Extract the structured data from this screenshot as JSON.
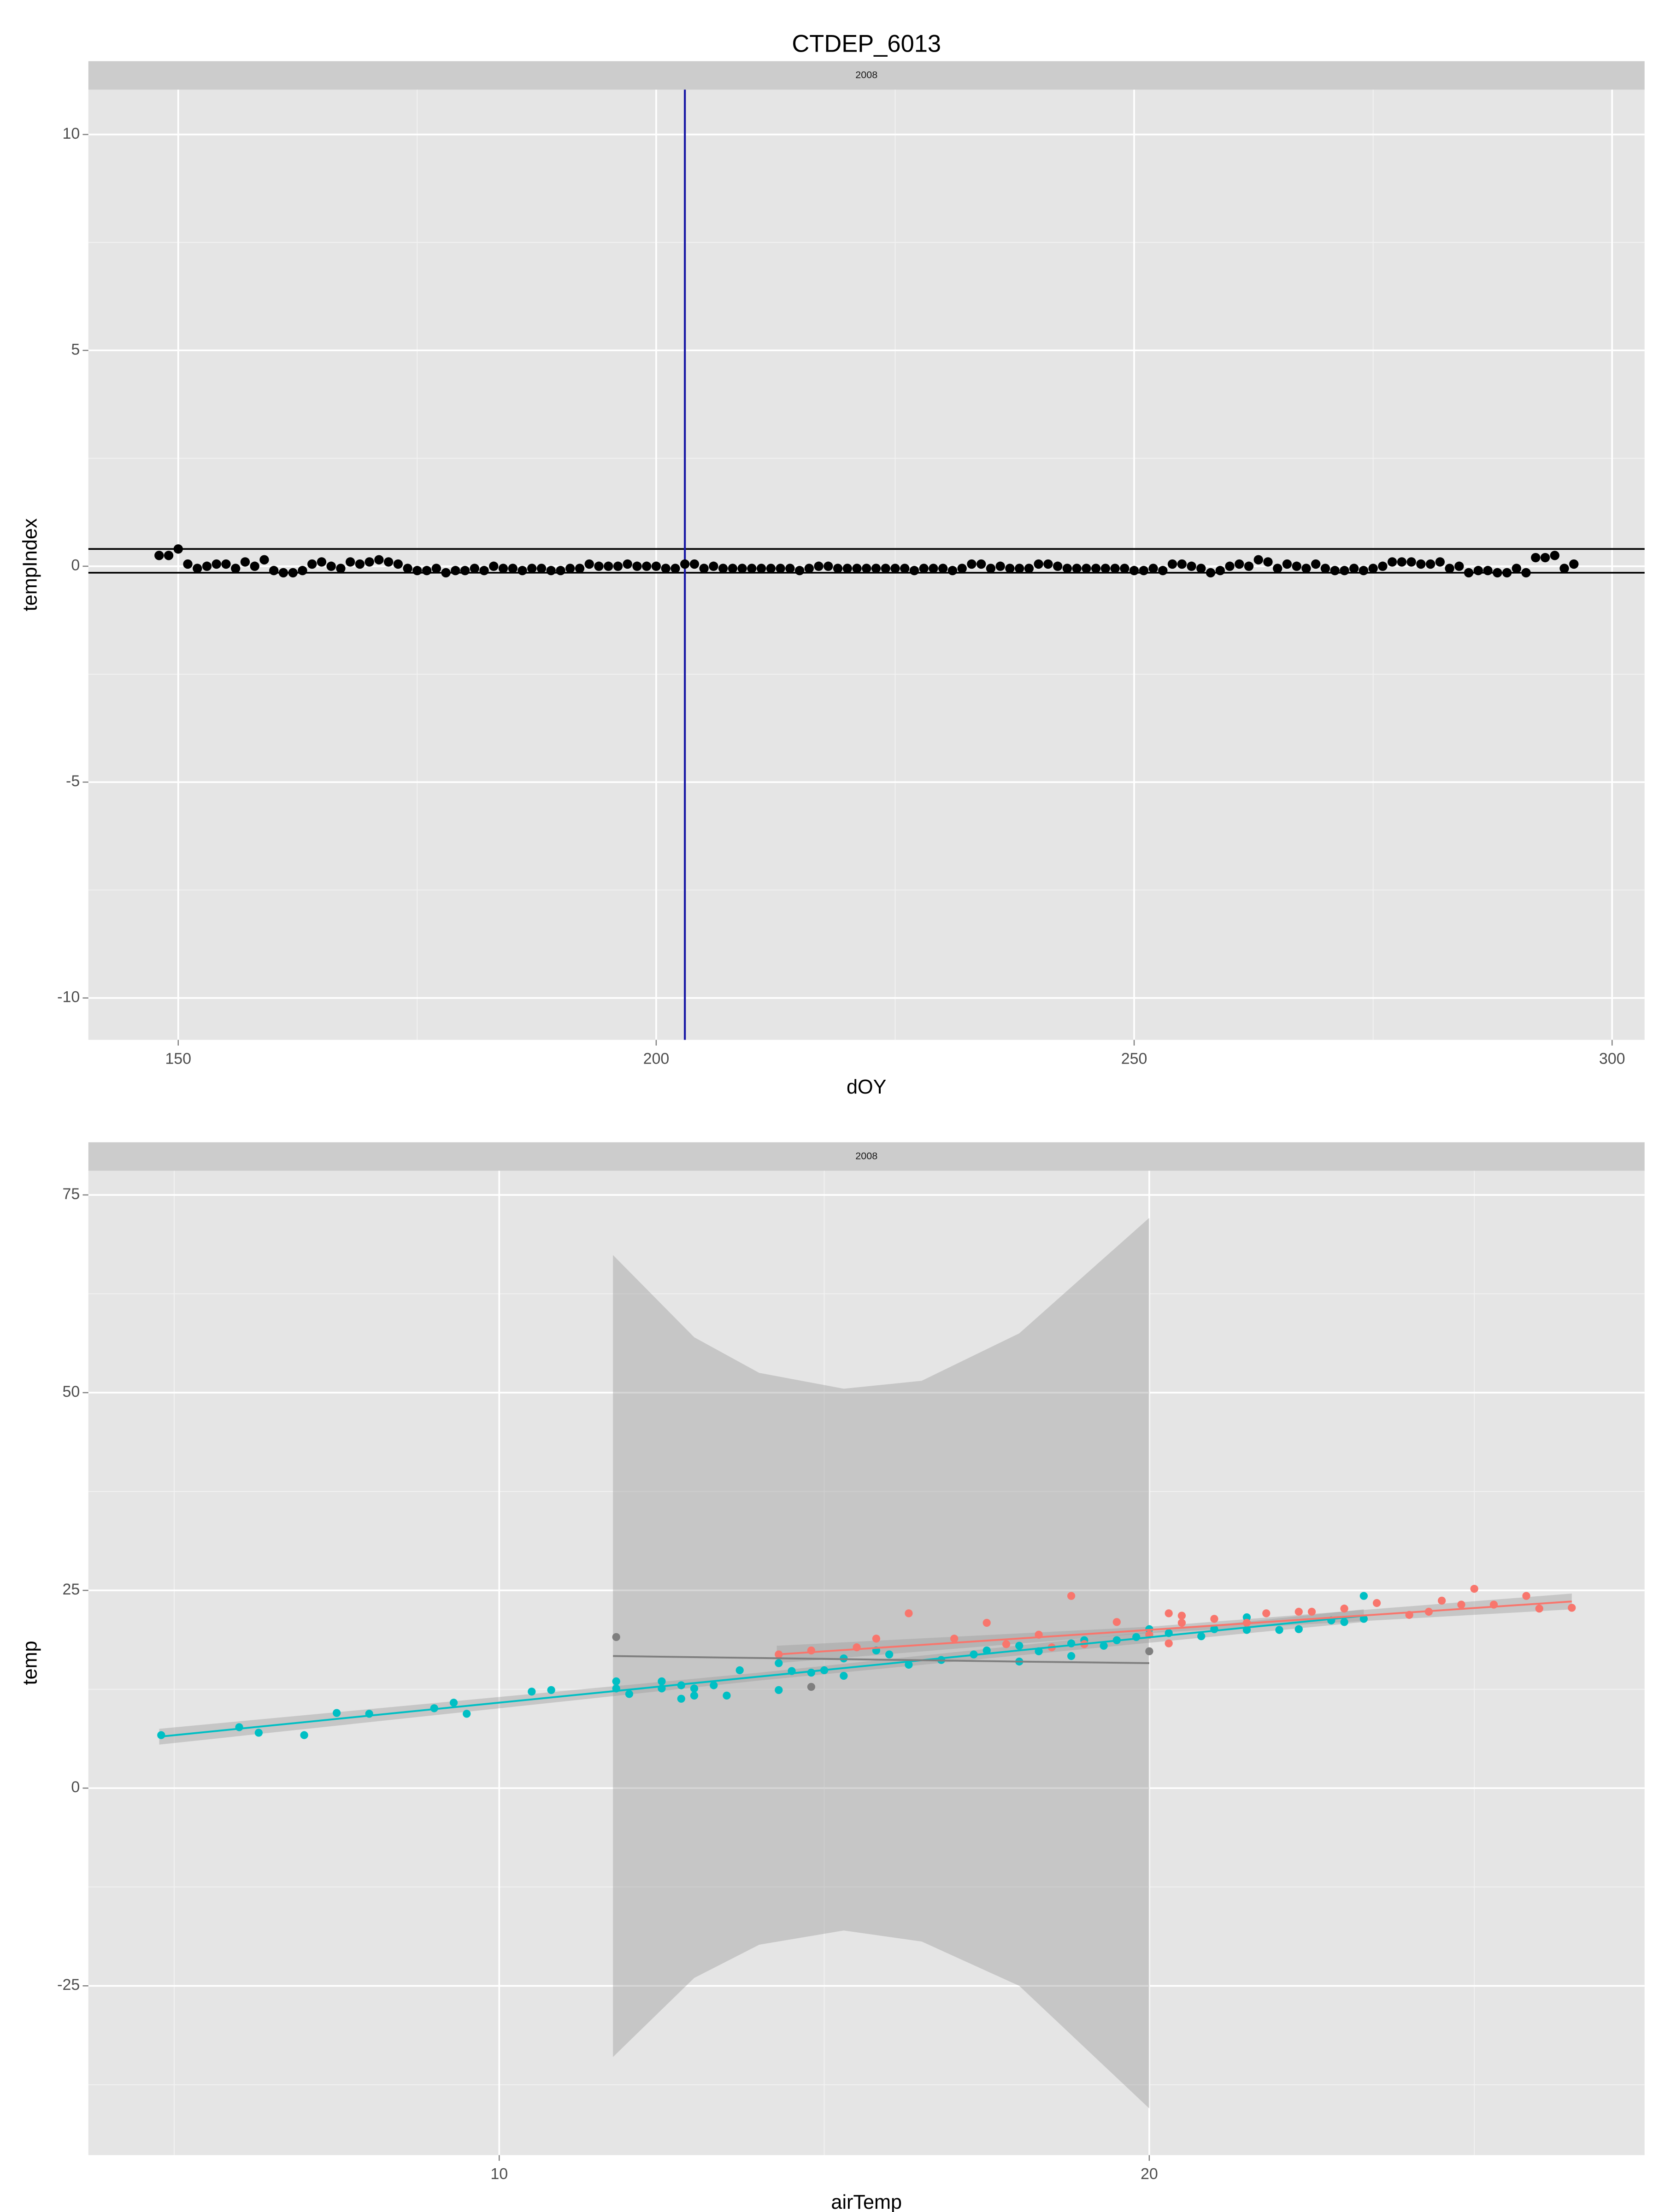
{
  "chart_data": [
    {
      "type": "scatter",
      "title": "CTDEP_6013",
      "strip": "2008",
      "x_label": "dOY",
      "y_label": "tempIndex",
      "x": [
        148,
        149,
        150,
        151,
        152,
        153,
        154,
        155,
        156,
        157,
        158,
        159,
        160,
        161,
        162,
        163,
        164,
        165,
        166,
        167,
        168,
        169,
        170,
        171,
        172,
        173,
        174,
        175,
        176,
        177,
        178,
        179,
        180,
        181,
        182,
        183,
        184,
        185,
        186,
        187,
        188,
        189,
        190,
        191,
        192,
        193,
        194,
        195,
        196,
        197,
        198,
        199,
        200,
        201,
        202,
        203,
        204,
        205,
        206,
        207,
        208,
        209,
        210,
        211,
        212,
        213,
        214,
        215,
        216,
        217,
        218,
        219,
        220,
        221,
        222,
        223,
        224,
        225,
        226,
        227,
        228,
        229,
        230,
        231,
        232,
        233,
        234,
        235,
        236,
        237,
        238,
        239,
        240,
        241,
        242,
        243,
        244,
        245,
        246,
        247,
        248,
        249,
        250,
        251,
        252,
        253,
        254,
        255,
        256,
        257,
        258,
        259,
        260,
        261,
        262,
        263,
        264,
        265,
        266,
        267,
        268,
        269,
        270,
        271,
        272,
        273,
        274,
        275,
        276,
        277,
        278,
        279,
        280,
        281,
        282,
        283,
        284,
        285,
        286,
        287,
        288,
        289,
        290,
        291,
        292,
        293,
        294,
        295,
        296
      ],
      "values": [
        0.25,
        0.25,
        0.4,
        0.05,
        -0.05,
        0.0,
        0.05,
        0.05,
        -0.05,
        0.1,
        0.0,
        0.15,
        -0.1,
        -0.15,
        -0.15,
        -0.1,
        0.05,
        0.1,
        0.0,
        -0.05,
        0.1,
        0.05,
        0.1,
        0.15,
        0.1,
        0.05,
        -0.05,
        -0.1,
        -0.1,
        -0.05,
        -0.15,
        -0.1,
        -0.1,
        -0.05,
        -0.1,
        0.0,
        -0.05,
        -0.05,
        -0.1,
        -0.05,
        -0.05,
        -0.1,
        -0.1,
        -0.05,
        -0.05,
        0.05,
        0.0,
        0.0,
        0.0,
        0.05,
        0.0,
        0.0,
        0.0,
        -0.05,
        -0.05,
        0.05,
        0.05,
        -0.05,
        0.0,
        -0.05,
        -0.05,
        -0.05,
        -0.05,
        -0.05,
        -0.05,
        -0.05,
        -0.05,
        -0.1,
        -0.05,
        0.0,
        0.0,
        -0.05,
        -0.05,
        -0.05,
        -0.05,
        -0.05,
        -0.05,
        -0.05,
        -0.05,
        -0.1,
        -0.05,
        -0.05,
        -0.05,
        -0.1,
        -0.05,
        0.05,
        0.05,
        -0.05,
        0.0,
        -0.05,
        -0.05,
        -0.05,
        0.05,
        0.05,
        0.0,
        -0.05,
        -0.05,
        -0.05,
        -0.05,
        -0.05,
        -0.05,
        -0.05,
        -0.1,
        -0.1,
        -0.05,
        -0.1,
        0.05,
        0.05,
        0.0,
        -0.05,
        -0.15,
        -0.1,
        0.0,
        0.05,
        0.0,
        0.15,
        0.1,
        -0.05,
        0.05,
        0.0,
        -0.05,
        0.05,
        -0.05,
        -0.1,
        -0.1,
        -0.05,
        -0.1,
        -0.05,
        0.0,
        0.1,
        0.1,
        0.1,
        0.05,
        0.05,
        0.1,
        -0.05,
        0.0,
        -0.15,
        -0.1,
        -0.1,
        -0.15,
        -0.15,
        -0.05,
        -0.15,
        0.2,
        0.2,
        0.25,
        -0.05,
        0.05
      ],
      "color": "#000000",
      "hlines": [
        0.4,
        -0.15
      ],
      "hline_color": "#000000",
      "vline": 203,
      "vline_color": "#1a1aa6",
      "xlim": [
        140.6,
        303.4
      ],
      "ylim": [
        -10.97,
        11.04
      ],
      "xticks": [
        150,
        200,
        250,
        300
      ],
      "yticks": [
        -10,
        -5,
        0,
        5,
        10
      ],
      "xminor": [
        175,
        225,
        275
      ],
      "yminor": [
        -7.5,
        -2.5,
        2.5,
        7.5
      ],
      "grid": true
    },
    {
      "type": "scatter",
      "strip": "2008",
      "x_label": "airTemp",
      "y_label": "temp",
      "series": [
        {
          "color": "#00BFC4",
          "x": [
            4.8,
            6.0,
            6.3,
            7.0,
            7.5,
            8.0,
            9.0,
            9.3,
            9.5,
            10.5,
            10.8,
            11.8,
            11.8,
            12.0,
            12.5,
            12.5,
            12.8,
            12.8,
            13.0,
            13.0,
            13.3,
            13.5,
            13.7,
            14.3,
            14.3,
            14.5,
            14.8,
            15.0,
            15.3,
            15.3,
            15.8,
            16.0,
            16.3,
            16.8,
            17.3,
            17.5,
            18.0,
            18.0,
            18.3,
            18.8,
            18.8,
            19.0,
            19.3,
            19.5,
            19.8,
            20.0,
            20.3,
            20.8,
            21.0,
            21.5,
            21.5,
            22.0,
            22.3,
            22.8,
            23.0,
            23.3,
            23.3
          ],
          "values": [
            6.7,
            7.7,
            7.0,
            6.7,
            9.5,
            9.4,
            10.1,
            10.8,
            9.4,
            12.2,
            12.4,
            13.5,
            12.6,
            11.9,
            13.5,
            12.6,
            11.3,
            13.0,
            11.7,
            12.6,
            13.0,
            11.7,
            14.9,
            12.4,
            15.8,
            14.8,
            14.6,
            14.9,
            14.2,
            16.4,
            17.4,
            16.9,
            15.6,
            16.2,
            16.9,
            17.4,
            16.0,
            18.0,
            17.3,
            16.7,
            18.3,
            18.7,
            18.0,
            18.7,
            19.1,
            20.1,
            19.6,
            19.2,
            20.1,
            20.0,
            21.6,
            20.0,
            20.1,
            21.2,
            21.0,
            24.3,
            21.4
          ],
          "fit": {
            "x": [
              4.77,
              14,
              23.3
            ],
            "y": [
              6.5,
              14.1,
              21.8
            ],
            "lower": [
              5.5,
              13.6,
              21.0
            ],
            "upper": [
              7.5,
              14.6,
              22.6
            ]
          }
        },
        {
          "color": "#F8766D",
          "x": [
            14.3,
            14.8,
            15.5,
            15.8,
            16.3,
            17.0,
            17.5,
            17.8,
            18.3,
            18.5,
            18.8,
            19.0,
            19.5,
            20.0,
            20.3,
            20.3,
            20.5,
            20.5,
            21.0,
            21.5,
            21.8,
            22.3,
            22.5,
            23.0,
            23.5,
            24.0,
            24.3,
            24.5,
            24.8,
            25.0,
            25.3,
            25.8,
            26.0,
            26.5
          ],
          "values": [
            16.9,
            17.4,
            17.8,
            18.9,
            22.1,
            18.9,
            20.9,
            18.2,
            19.4,
            17.8,
            24.3,
            18.2,
            21.0,
            19.4,
            22.1,
            18.3,
            21.8,
            20.9,
            21.4,
            20.9,
            22.1,
            22.3,
            22.3,
            22.7,
            23.4,
            21.9,
            22.3,
            23.7,
            23.2,
            25.2,
            23.2,
            24.3,
            22.7,
            22.8
          ],
          "fit": {
            "x": [
              14.27,
              20,
              26.5
            ],
            "y": [
              16.9,
              20.0,
              23.6
            ],
            "lower": [
              15.8,
              19.6,
              22.6
            ],
            "upper": [
              18.0,
              20.4,
              24.6
            ]
          }
        },
        {
          "color": "#7F7F7F",
          "x": [
            11.8,
            14.8,
            20.0
          ],
          "values": [
            19.1,
            12.8,
            17.3
          ],
          "fit": {
            "x": [
              11.75,
              13,
              14,
              15.3,
              16.5,
              18,
              20
            ],
            "y": [
              16.7,
              16.56,
              16.45,
              16.3,
              16.17,
              16.0,
              15.8
            ],
            "lower": [
              -34,
              -24,
              -19.8,
              -18,
              -19.4,
              -25,
              -40.5
            ],
            "upper": [
              67.4,
              57,
              52.5,
              50.5,
              51.5,
              57.5,
              72.1
            ]
          }
        }
      ],
      "xlim": [
        3.68,
        27.62
      ],
      "ylim": [
        -46.4,
        78.06
      ],
      "xticks": [
        10,
        20
      ],
      "yticks": [
        -25,
        0,
        25,
        50,
        75
      ],
      "xminor": [
        5,
        15,
        25
      ],
      "yminor": [
        -37.5,
        -12.5,
        12.5,
        37.5,
        62.5
      ],
      "grid": true
    }
  ]
}
